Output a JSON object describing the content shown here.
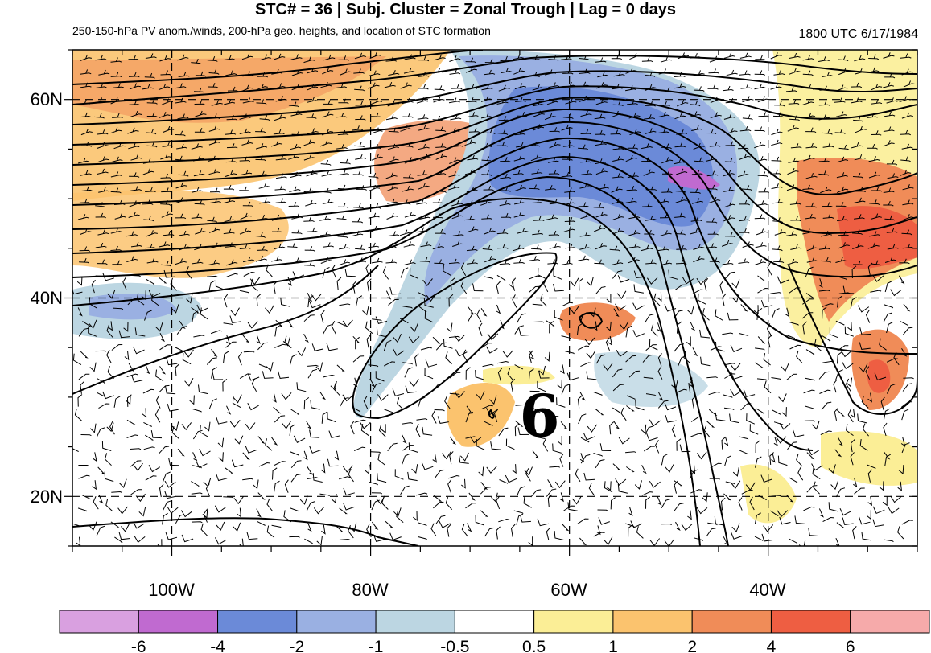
{
  "title": "STC# = 36 | Subj. Cluster = Zonal Trough | Lag = 0 days",
  "subtitle_left": "250-150-hPa PV anom./winds, 200-hPa geo. heights, and location of STC formation",
  "subtitle_right": "1800 UTC  6/17/1984",
  "map": {
    "lon_range": [
      -110,
      -25
    ],
    "lat_range": [
      15,
      65
    ],
    "lat_ticks": [
      {
        "value": 60,
        "label": "60N"
      },
      {
        "value": 40,
        "label": "40N"
      },
      {
        "value": 20,
        "label": "20N"
      }
    ],
    "lon_ticks": [
      {
        "value": -100,
        "label": "100W"
      },
      {
        "value": -80,
        "label": "80W"
      },
      {
        "value": -60,
        "label": "60W"
      },
      {
        "value": -40,
        "label": "40W"
      }
    ],
    "gridlines": "dashed",
    "stc_symbol": "6",
    "stc_location": {
      "lon": -63,
      "lat": 28
    }
  },
  "colorbar": {
    "colors": [
      "#d9a0e0",
      "#c06ad0",
      "#6b8ad8",
      "#9ab0e2",
      "#bcd6e2",
      "#ffffff",
      "#fbee96",
      "#fbc36e",
      "#f08c58",
      "#ee5e42",
      "#f6aaaa"
    ],
    "labels": [
      "-6",
      "-4",
      "-2",
      "-1",
      "-0.5",
      "0.5",
      "1",
      "2",
      "4",
      "6"
    ]
  }
}
